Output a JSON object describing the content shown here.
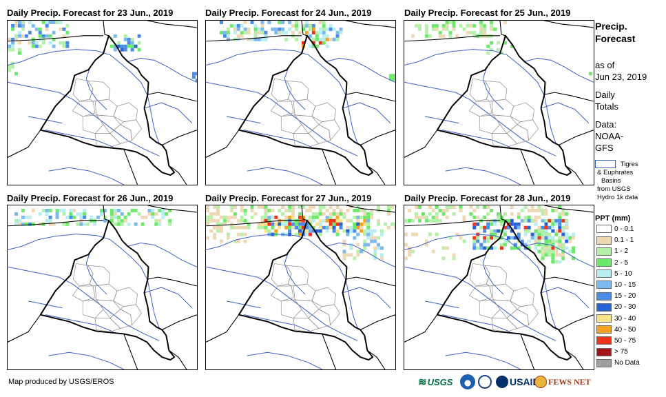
{
  "panels": [
    {
      "title": "Daily Precip. Forecast for 23 Jun., 2019"
    },
    {
      "title": "Daily Precip. Forecast for 24 Jun., 2019"
    },
    {
      "title": "Daily Precip. Forecast for 25 Jun., 2019"
    },
    {
      "title": "Daily Precip. Forecast for 26 Jun., 2019"
    },
    {
      "title": "Daily Precip. Forecast for 27 Jun., 2019"
    },
    {
      "title": "Daily Precip. Forecast for 28 Jun., 2019"
    }
  ],
  "sidebar": {
    "title_line1": "Precip.",
    "title_line2": "Forecast",
    "asof_line1": "as of",
    "asof_line2": "Jun 23, 2019",
    "daily_line1": "Daily",
    "daily_line2": "Totals",
    "data_line1": "Data:",
    "data_line2": "NOAA-",
    "data_line3": "GFS",
    "basin_line1": "Tigres",
    "basin_line2": "& Euphrates",
    "basin_line3": "Basins",
    "basin_line4": "from USGS",
    "basin_line5": "Hydro 1k data",
    "basin_color": "#3b5fc9"
  },
  "legend": {
    "title": "PPT (mm)",
    "items": [
      {
        "label": "0 - 0.1",
        "color": "#ffffff"
      },
      {
        "label": "0.1 - 1",
        "color": "#efd9b4"
      },
      {
        "label": "1 - 2",
        "color": "#b5f0a8"
      },
      {
        "label": "2 - 5",
        "color": "#6ce86a"
      },
      {
        "label": "5 - 10",
        "color": "#b8eef2"
      },
      {
        "label": "10 - 15",
        "color": "#7ab8ef"
      },
      {
        "label": "15 - 20",
        "color": "#4a8ce8"
      },
      {
        "label": "20 - 30",
        "color": "#2563d6"
      },
      {
        "label": "30 - 40",
        "color": "#fbe38a"
      },
      {
        "label": "40 - 50",
        "color": "#f5a21e"
      },
      {
        "label": "50 - 75",
        "color": "#f0341c"
      },
      {
        "label": "> 75",
        "color": "#a3151b"
      },
      {
        "label": "No Data",
        "color": "#a0a0a0"
      }
    ]
  },
  "footer": {
    "credit": "Map produced by USGS/EROS",
    "logo_usgs": "USGS",
    "logo_usaid": "USAID",
    "logo_fews": "FEWS NET"
  }
}
